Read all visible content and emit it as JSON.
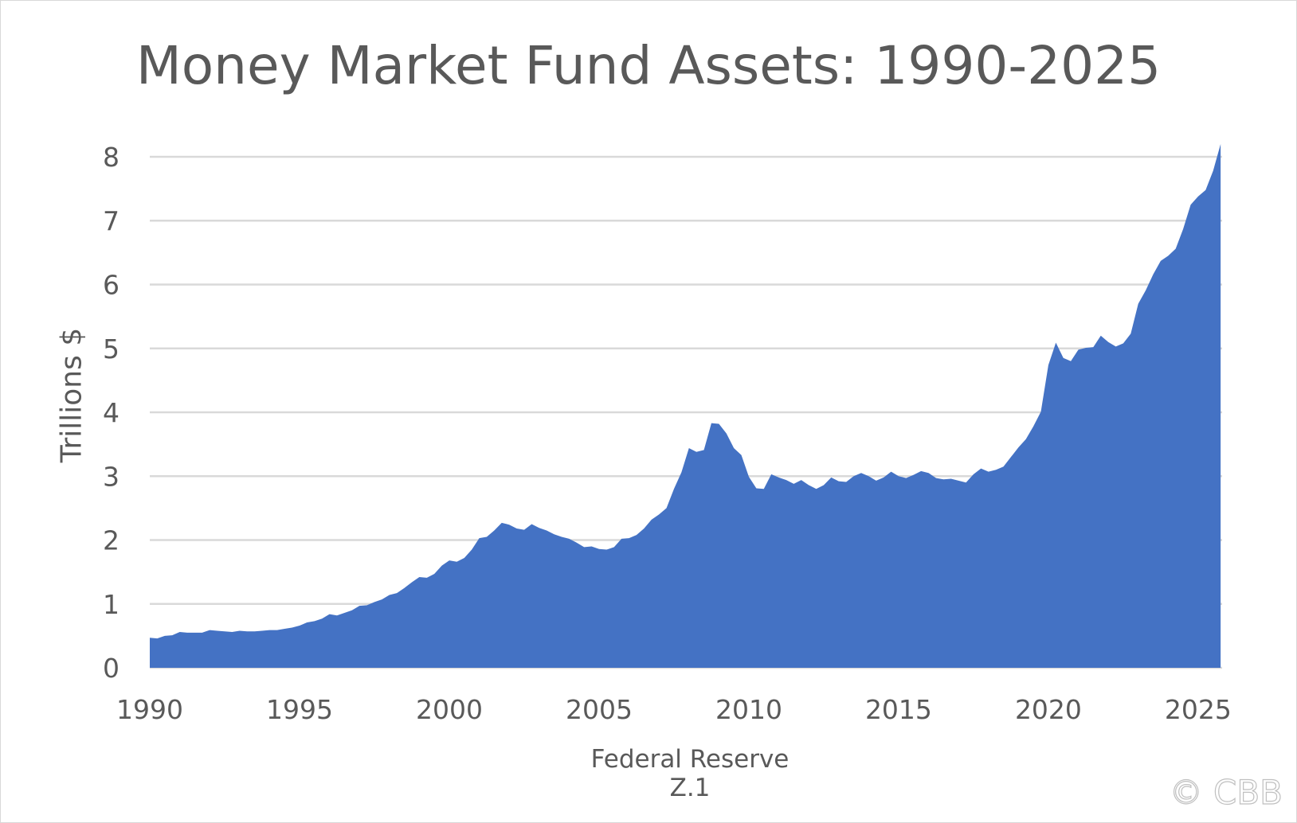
{
  "chart_data": {
    "type": "area",
    "title": "Money Market Fund Assets: 1990-2025",
    "xlabel": "Federal Reserve Z.1",
    "ylabel": "Trillions $",
    "xlim": [
      1990,
      2025.8
    ],
    "ylim": [
      0,
      8
    ],
    "y_ticks": [
      0,
      1,
      2,
      3,
      4,
      5,
      6,
      7,
      8
    ],
    "x_ticks": [
      1990,
      1995,
      2000,
      2005,
      2010,
      2015,
      2020,
      2025
    ],
    "grid": true,
    "color": "#4472C4",
    "series": [
      {
        "x": [
          1990.0,
          1990.25,
          1990.5,
          1990.75,
          1991.0,
          1991.25,
          1991.5,
          1991.75,
          1992.0,
          1992.25,
          1992.5,
          1992.75,
          1993.0,
          1993.25,
          1993.5,
          1993.75,
          1994.0,
          1994.25,
          1994.5,
          1994.75,
          1995.0,
          1995.25,
          1995.5,
          1995.75,
          1996.0,
          1996.25,
          1996.5,
          1996.75,
          1997.0,
          1997.25,
          1997.5,
          1997.75,
          1998.0,
          1998.25,
          1998.5,
          1998.75,
          1999.0,
          1999.25,
          1999.5,
          1999.75,
          2000.0,
          2000.25,
          2000.5,
          2000.75,
          2001.0,
          2001.25,
          2001.5,
          2001.75,
          2002.0,
          2002.25,
          2002.5,
          2002.75,
          2003.0,
          2003.25,
          2003.5,
          2003.75,
          2004.0,
          2004.25,
          2004.5,
          2004.75,
          2005.0,
          2005.25,
          2005.5,
          2005.75,
          2006.0,
          2006.25,
          2006.5,
          2006.75,
          2007.0,
          2007.25,
          2007.5,
          2007.75,
          2008.0,
          2008.25,
          2008.5,
          2008.75,
          2009.0,
          2009.25,
          2009.5,
          2009.75,
          2010.0,
          2010.25,
          2010.5,
          2010.75,
          2011.0,
          2011.25,
          2011.5,
          2011.75,
          2012.0,
          2012.25,
          2012.5,
          2012.75,
          2013.0,
          2013.25,
          2013.5,
          2013.75,
          2014.0,
          2014.25,
          2014.5,
          2014.75,
          2015.0,
          2015.25,
          2015.5,
          2015.75,
          2016.0,
          2016.25,
          2016.5,
          2016.75,
          2017.0,
          2017.25,
          2017.5,
          2017.75,
          2018.0,
          2018.25,
          2018.5,
          2018.75,
          2019.0,
          2019.25,
          2019.5,
          2019.75,
          2020.0,
          2020.25,
          2020.5,
          2020.75,
          2021.0,
          2021.25,
          2021.5,
          2021.75,
          2022.0,
          2022.25,
          2022.5,
          2022.75,
          2023.0,
          2023.25,
          2023.5,
          2023.75,
          2024.0,
          2024.25,
          2024.5,
          2024.75,
          2025.0,
          2025.25,
          2025.5,
          2025.75
        ],
        "y": [
          0.47,
          0.46,
          0.5,
          0.51,
          0.56,
          0.55,
          0.55,
          0.55,
          0.59,
          0.58,
          0.57,
          0.56,
          0.58,
          0.57,
          0.57,
          0.58,
          0.59,
          0.59,
          0.61,
          0.63,
          0.66,
          0.71,
          0.73,
          0.77,
          0.84,
          0.82,
          0.86,
          0.9,
          0.97,
          0.98,
          1.03,
          1.07,
          1.14,
          1.17,
          1.25,
          1.34,
          1.42,
          1.41,
          1.47,
          1.6,
          1.68,
          1.66,
          1.72,
          1.85,
          2.03,
          2.05,
          2.15,
          2.27,
          2.24,
          2.18,
          2.16,
          2.25,
          2.19,
          2.15,
          2.09,
          2.05,
          2.02,
          1.96,
          1.89,
          1.9,
          1.86,
          1.85,
          1.89,
          2.02,
          2.03,
          2.08,
          2.18,
          2.32,
          2.4,
          2.5,
          2.8,
          3.06,
          3.44,
          3.38,
          3.41,
          3.83,
          3.82,
          3.67,
          3.44,
          3.33,
          2.99,
          2.81,
          2.8,
          3.03,
          2.98,
          2.94,
          2.88,
          2.94,
          2.86,
          2.8,
          2.86,
          2.98,
          2.92,
          2.91,
          3.0,
          3.05,
          3.0,
          2.93,
          2.98,
          3.07,
          3.0,
          2.97,
          3.02,
          3.08,
          3.05,
          2.97,
          2.95,
          2.96,
          2.93,
          2.9,
          3.03,
          3.12,
          3.07,
          3.1,
          3.15,
          3.3,
          3.45,
          3.58,
          3.78,
          4.01,
          4.74,
          5.09,
          4.85,
          4.8,
          4.98,
          5.01,
          5.02,
          5.2,
          5.1,
          5.03,
          5.08,
          5.23,
          5.7,
          5.91,
          6.16,
          6.37,
          6.45,
          6.56,
          6.87,
          7.25,
          7.38,
          7.48,
          7.78,
          8.2
        ]
      }
    ]
  },
  "watermark": "© CBB"
}
